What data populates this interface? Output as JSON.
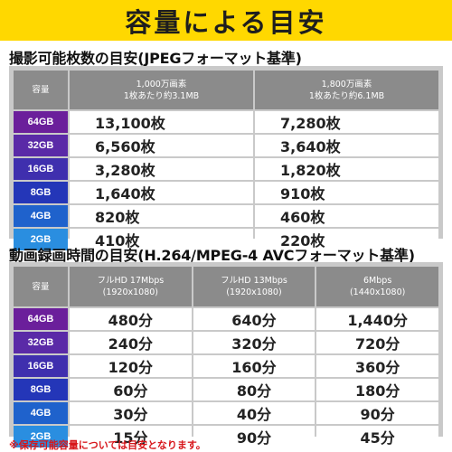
{
  "banner": {
    "title": "容量による目安"
  },
  "photos": {
    "title": "撮影可能枚数の目安(JPEGフォーマット基準)",
    "capacity_header": "容量",
    "columns": [
      {
        "line1": "1,000万画素",
        "line2": "1枚あたり約3.1MB"
      },
      {
        "line1": "1,800万画素",
        "line2": "1枚あたり約6.1MB"
      }
    ],
    "rows": [
      {
        "capacity": "64GB",
        "color": "#6b1f9b",
        "values": [
          "13,100枚",
          "7,280枚"
        ]
      },
      {
        "capacity": "32GB",
        "color": "#5a2aa7",
        "values": [
          "6,560枚",
          "3,640枚"
        ]
      },
      {
        "capacity": "16GB",
        "color": "#3f2fae",
        "values": [
          "3,280枚",
          "1,820枚"
        ]
      },
      {
        "capacity": "8GB",
        "color": "#2436b8",
        "values": [
          "1,640枚",
          "910枚"
        ]
      },
      {
        "capacity": "4GB",
        "color": "#1f62cc",
        "values": [
          "820枚",
          "460枚"
        ]
      },
      {
        "capacity": "2GB",
        "color": "#2a8ee0",
        "values": [
          "410枚",
          "220枚"
        ]
      }
    ]
  },
  "video": {
    "title": "動画録画時間の目安(H.264/MPEG-4 AVCフォーマット基準)",
    "capacity_header": "容量",
    "columns": [
      {
        "line1": "フルHD 17Mbps",
        "line2": "(1920x1080)"
      },
      {
        "line1": "フルHD 13Mbps",
        "line2": "(1920x1080)"
      },
      {
        "line1": "6Mbps",
        "line2": "(1440x1080)"
      }
    ],
    "rows": [
      {
        "capacity": "64GB",
        "color": "#6b1f9b",
        "values": [
          "480分",
          "640分",
          "1,440分"
        ]
      },
      {
        "capacity": "32GB",
        "color": "#5a2aa7",
        "values": [
          "240分",
          "320分",
          "720分"
        ]
      },
      {
        "capacity": "16GB",
        "color": "#3f2fae",
        "values": [
          "120分",
          "160分",
          "360分"
        ]
      },
      {
        "capacity": "8GB",
        "color": "#2436b8",
        "values": [
          "60分",
          "80分",
          "180分"
        ]
      },
      {
        "capacity": "4GB",
        "color": "#1f62cc",
        "values": [
          "30分",
          "40分",
          "90分"
        ]
      },
      {
        "capacity": "2GB",
        "color": "#2a8ee0",
        "values": [
          "15分",
          "90分",
          "45分"
        ]
      }
    ]
  },
  "footnote": "※保存可能容量については目安となります。"
}
